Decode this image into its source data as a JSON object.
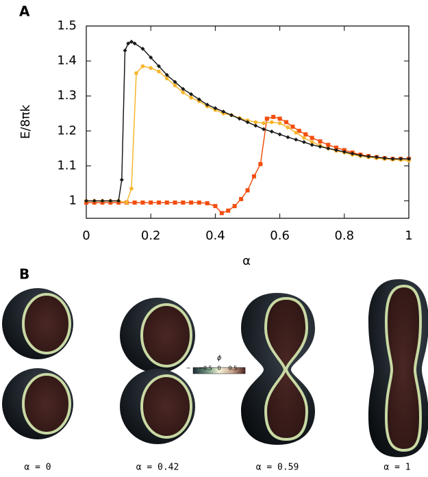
{
  "chart_data": {
    "type": "line",
    "panel_label": "A",
    "y_label": "E/8πk",
    "x_label": "α",
    "xlim": [
      0,
      1
    ],
    "xticks": [
      0,
      0.2,
      0.4,
      0.6,
      0.8,
      1
    ],
    "ylim": [
      0.95,
      1.5
    ],
    "yticks": [
      1,
      1.1,
      1.2,
      1.3,
      1.4,
      1.5
    ],
    "series": [
      {
        "color": "#1a1a1a",
        "marker": "diamond",
        "x": [
          0,
          0.025,
          0.05,
          0.075,
          0.1,
          0.11,
          0.12,
          0.13,
          0.14,
          0.15,
          0.175,
          0.2,
          0.225,
          0.25,
          0.275,
          0.3,
          0.325,
          0.35,
          0.375,
          0.4,
          0.425,
          0.45,
          0.475,
          0.5,
          0.525,
          0.55,
          0.575,
          0.6,
          0.625,
          0.65,
          0.675,
          0.7,
          0.725,
          0.75,
          0.775,
          0.8,
          0.825,
          0.85,
          0.875,
          0.9,
          0.925,
          0.95,
          0.975,
          1
        ],
        "values": [
          1,
          1,
          1,
          1,
          1,
          1.06,
          1.43,
          1.45,
          1.455,
          1.45,
          1.435,
          1.41,
          1.385,
          1.36,
          1.34,
          1.32,
          1.305,
          1.29,
          1.275,
          1.265,
          1.255,
          1.245,
          1.235,
          1.225,
          1.215,
          1.205,
          1.198,
          1.19,
          1.182,
          1.175,
          1.168,
          1.16,
          1.155,
          1.15,
          1.145,
          1.14,
          1.135,
          1.13,
          1.127,
          1.125,
          1.122,
          1.12,
          1.12,
          1.12
        ]
      },
      {
        "color": "#f7b52b",
        "marker": "circle",
        "x": [
          0,
          0.025,
          0.05,
          0.075,
          0.1,
          0.125,
          0.14,
          0.155,
          0.175,
          0.2,
          0.225,
          0.25,
          0.275,
          0.3,
          0.325,
          0.35,
          0.375,
          0.4,
          0.425,
          0.45,
          0.475,
          0.5,
          0.525,
          0.55,
          0.575,
          0.6,
          0.625,
          0.65,
          0.675,
          0.7,
          0.725,
          0.75,
          0.775,
          0.8,
          0.825,
          0.85,
          0.875,
          0.9,
          0.925,
          0.95,
          0.975,
          1
        ],
        "values": [
          1,
          1,
          1,
          1,
          1,
          0.995,
          1.035,
          1.365,
          1.385,
          1.38,
          1.37,
          1.35,
          1.33,
          1.31,
          1.295,
          1.285,
          1.27,
          1.26,
          1.25,
          1.245,
          1.237,
          1.23,
          1.225,
          1.222,
          1.225,
          1.222,
          1.21,
          1.195,
          1.18,
          1.168,
          1.158,
          1.15,
          1.143,
          1.138,
          1.132,
          1.128,
          1.125,
          1.122,
          1.12,
          1.118,
          1.117,
          1.115
        ]
      },
      {
        "color": "#f24e0e",
        "marker": "square",
        "x": [
          0,
          0.025,
          0.05,
          0.075,
          0.1,
          0.125,
          0.15,
          0.175,
          0.2,
          0.225,
          0.25,
          0.275,
          0.3,
          0.325,
          0.35,
          0.375,
          0.4,
          0.42,
          0.44,
          0.46,
          0.48,
          0.5,
          0.52,
          0.54,
          0.56,
          0.58,
          0.6,
          0.62,
          0.64,
          0.66,
          0.68,
          0.7,
          0.725,
          0.75,
          0.775,
          0.8,
          0.825,
          0.85,
          0.875,
          0.9,
          0.925,
          0.95,
          0.975,
          1
        ],
        "values": [
          0.995,
          0.995,
          0.995,
          0.995,
          0.995,
          0.995,
          0.995,
          0.995,
          0.995,
          0.995,
          0.995,
          0.995,
          0.995,
          0.995,
          0.995,
          0.993,
          0.985,
          0.965,
          0.972,
          0.985,
          1.005,
          1.03,
          1.07,
          1.105,
          1.235,
          1.24,
          1.235,
          1.225,
          1.212,
          1.2,
          1.19,
          1.18,
          1.17,
          1.16,
          1.152,
          1.145,
          1.138,
          1.132,
          1.128,
          1.125,
          1.122,
          1.12,
          1.12,
          1.12
        ]
      }
    ]
  },
  "panel_b": {
    "label": "B",
    "colorbar": {
      "title": "ϕ",
      "tick_labels": [
        "−",
        "−0.5",
        "0",
        "0.5"
      ]
    },
    "captions": [
      "α = 0",
      "α = 0.42",
      "α = 0.59",
      "α = 1"
    ]
  }
}
